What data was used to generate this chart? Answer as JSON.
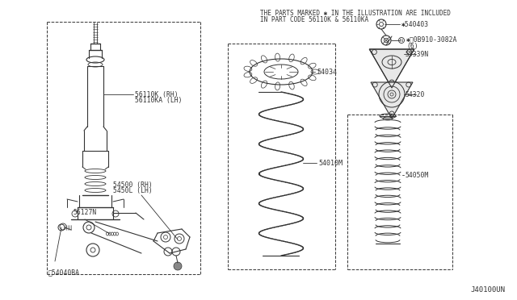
{
  "bg_color": "#ffffff",
  "line_color": "#333333",
  "header_line1": "THE PARTS MARKED ✱ IN THE ILLUSTRATION ARE INCLUDED",
  "header_line2": "IN PART CODE 56110K & 56110KA",
  "footer": "J40100UN",
  "label_56110K": "56110K (RH)",
  "label_56110KA": "56110KA (LH)",
  "label_54500": "54500 (RH)",
  "label_5450L": "5450L (LH)",
  "label_56127N": "56127N",
  "label_54040BA": "❔54040BA",
  "label_54034": "54034",
  "label_54010M": "54010M",
  "label_540403": "✱540403",
  "label_0B910": "✱␸0B910-3082A",
  "label_0B910_sub": "(6)",
  "label_55339N": "55339N",
  "label_54320": "54320",
  "label_54050M": "54050M"
}
